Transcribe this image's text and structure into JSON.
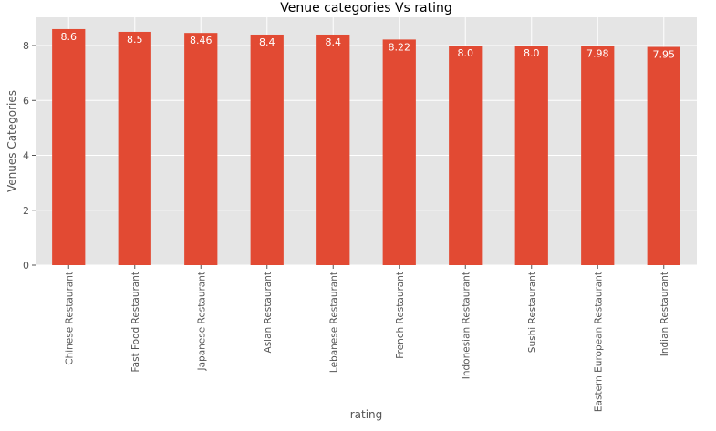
{
  "chart_data": {
    "type": "bar",
    "title": "Venue categories Vs rating",
    "xlabel": "rating",
    "ylabel": "Venues Categories",
    "categories": [
      "Chinese Restaurant",
      "Fast Food Restaurant",
      "Japanese Restaurant",
      "Asian Restaurant",
      "Lebanese Restaurant",
      "French Restaurant",
      "Indonesian Restaurant",
      "Sushi Restaurant",
      "Eastern European Restaurant",
      "Indian Restaurant"
    ],
    "values": [
      8.6,
      8.5,
      8.46,
      8.4,
      8.4,
      8.22,
      8.0,
      8.0,
      7.98,
      7.95
    ],
    "data_labels": [
      "8.6",
      "8.5",
      "8.46",
      "8.4",
      "8.4",
      "8.22",
      "8.0",
      "8.0",
      "7.98",
      "7.95"
    ],
    "yticks": [
      0,
      2,
      4,
      6,
      8
    ],
    "ytick_labels": [
      "0",
      "2",
      "4",
      "6",
      "8"
    ],
    "ylim": [
      0,
      9.03
    ],
    "grid": true,
    "legend": "none",
    "colors": {
      "bar": "#E24A33",
      "plot_background": "#E5E5E5",
      "grid": "#FFFFFF",
      "tick_label": "#555555",
      "axis_label": "#555555",
      "title": "#000000",
      "data_label": "#FFFFFF"
    }
  }
}
